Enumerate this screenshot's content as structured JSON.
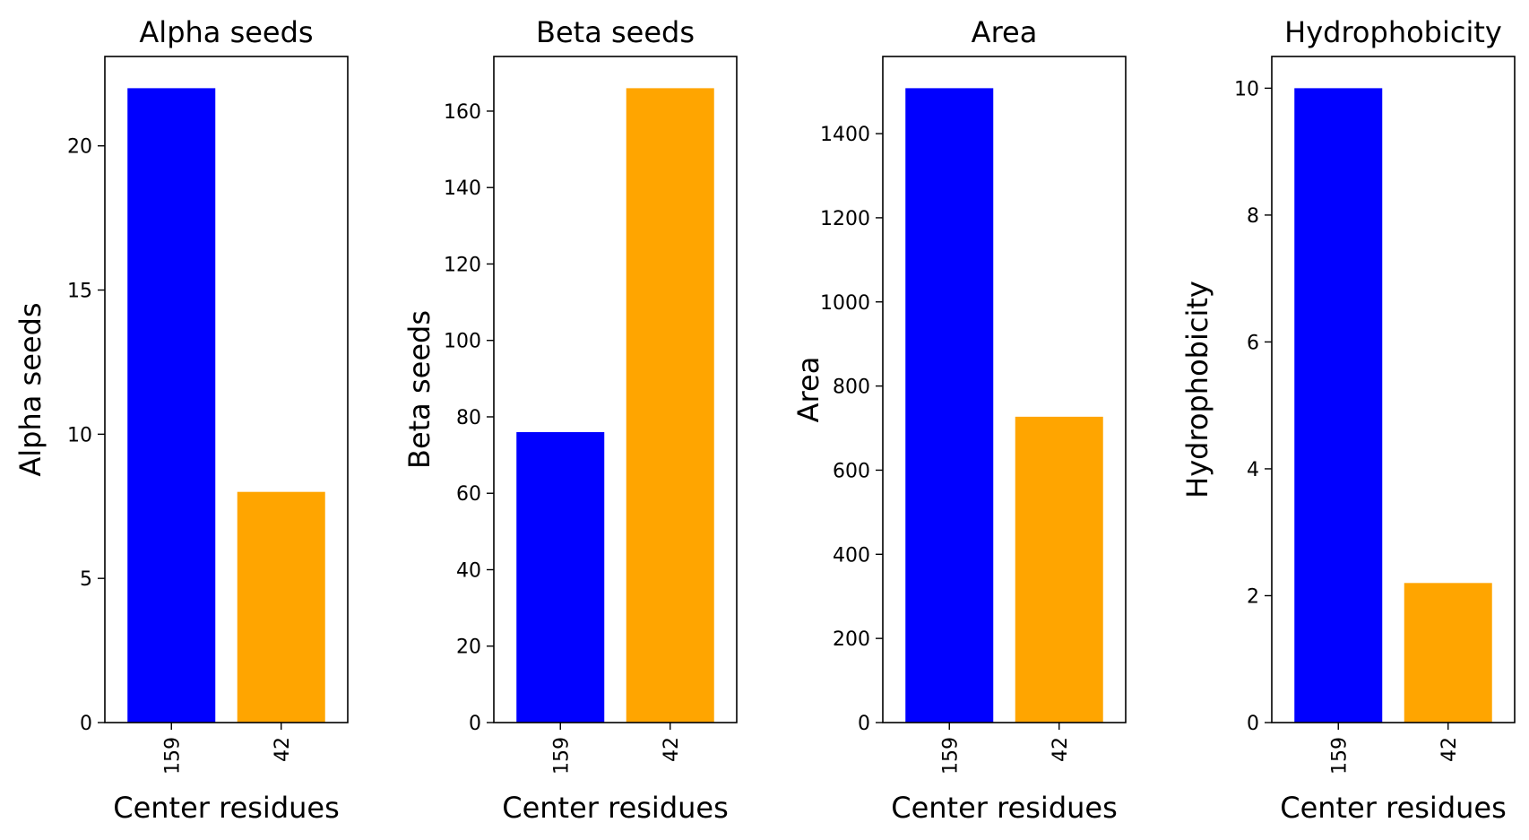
{
  "chart_data": [
    {
      "type": "bar",
      "title": "Alpha seeds",
      "xlabel": "Center residues",
      "ylabel": "Alpha seeds",
      "categories": [
        "159",
        "42"
      ],
      "values": [
        22,
        8
      ],
      "colors": [
        "#0000ff",
        "#ffa500"
      ],
      "ylim": [
        0,
        23.1
      ],
      "yticks": [
        0,
        5,
        10,
        15,
        20
      ],
      "grid": false
    },
    {
      "type": "bar",
      "title": "Beta seeds",
      "xlabel": "Center residues",
      "ylabel": "Beta seeds",
      "categories": [
        "159",
        "42"
      ],
      "values": [
        76,
        166
      ],
      "colors": [
        "#0000ff",
        "#ffa500"
      ],
      "ylim": [
        0,
        174.3
      ],
      "yticks": [
        0,
        20,
        40,
        60,
        80,
        100,
        120,
        140,
        160
      ],
      "grid": false
    },
    {
      "type": "bar",
      "title": "Area",
      "xlabel": "Center residues",
      "ylabel": "Area",
      "categories": [
        "159",
        "42"
      ],
      "values": [
        1508,
        727
      ],
      "colors": [
        "#0000ff",
        "#ffa500"
      ],
      "ylim": [
        0,
        1583.4
      ],
      "yticks": [
        0,
        200,
        400,
        600,
        800,
        1000,
        1200,
        1400
      ],
      "grid": false
    },
    {
      "type": "bar",
      "title": "Hydrophobicity",
      "xlabel": "Center residues",
      "ylabel": "Hydrophobicity",
      "categories": [
        "159",
        "42"
      ],
      "values": [
        10.0,
        2.2
      ],
      "colors": [
        "#0000ff",
        "#ffa500"
      ],
      "ylim": [
        0,
        10.5
      ],
      "yticks": [
        0,
        2,
        4,
        6,
        8,
        10
      ],
      "grid": false
    }
  ]
}
